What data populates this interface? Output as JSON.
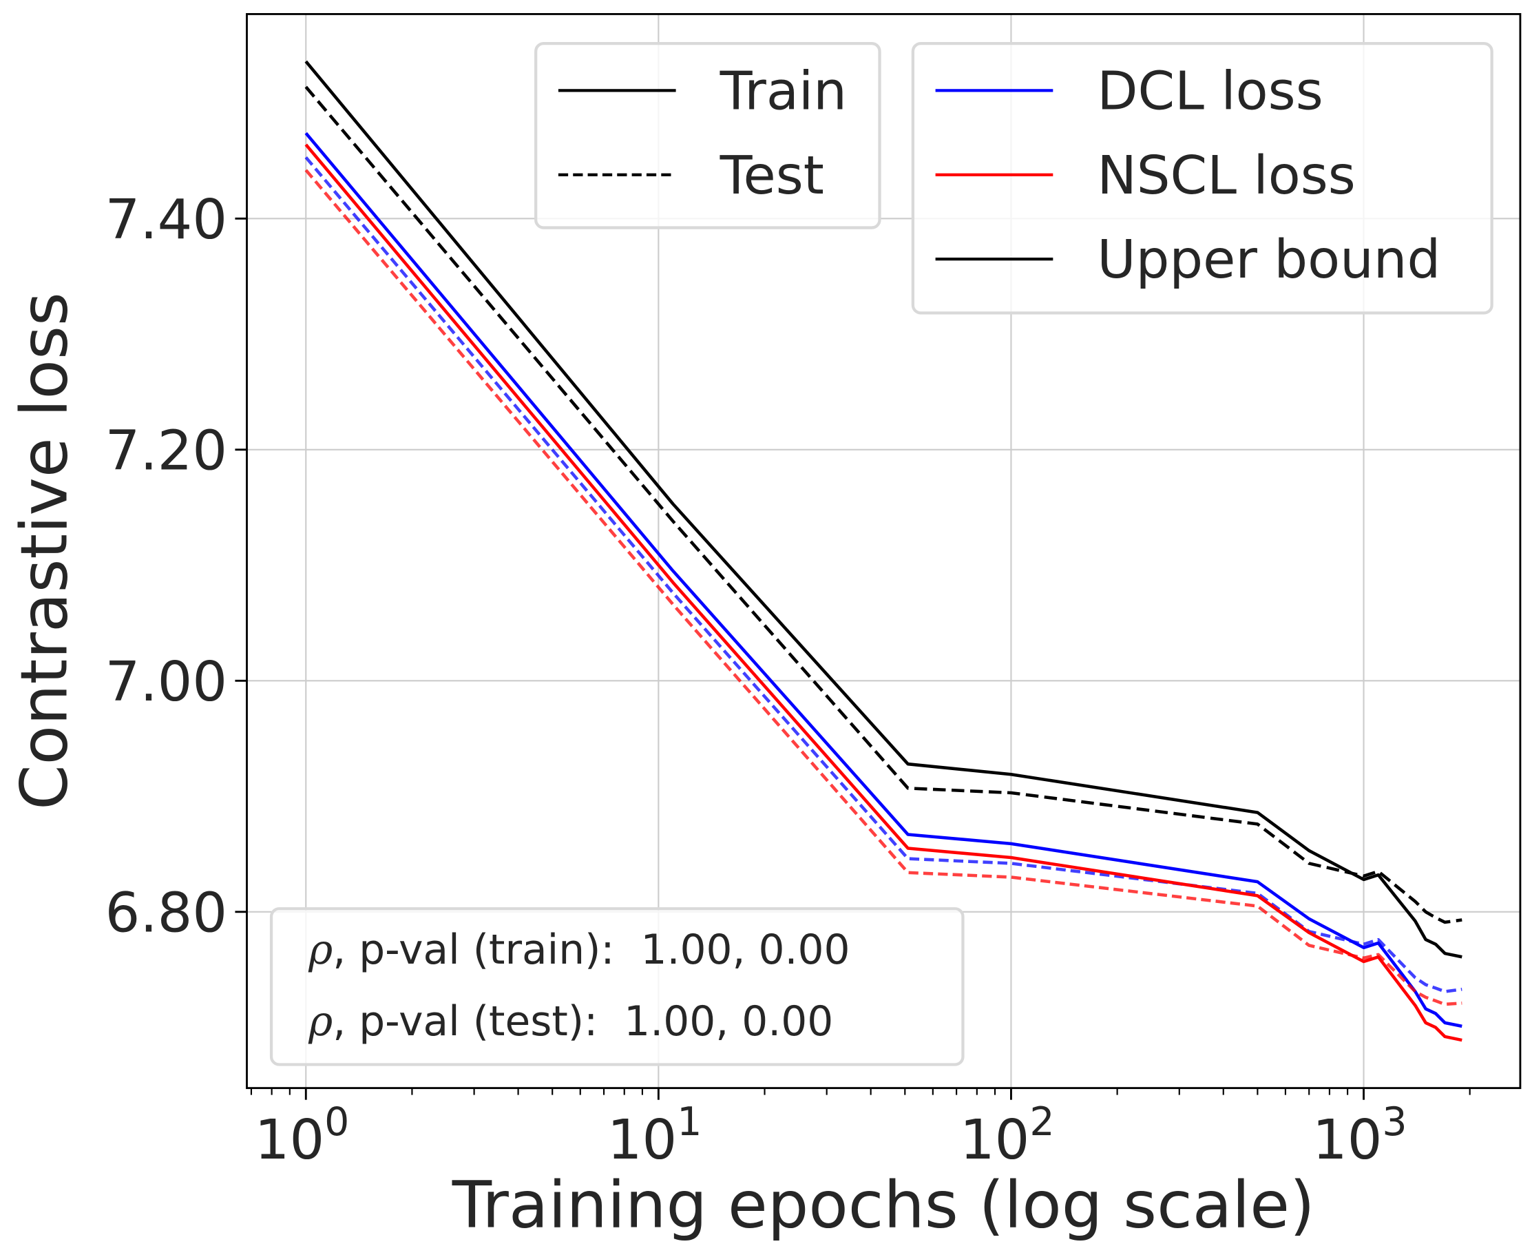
{
  "chart_data": {
    "type": "line",
    "title": "",
    "xlabel": "Training epochs (log scale)",
    "ylabel": "Contrastive loss",
    "xscale": "log",
    "xlim": [
      0.68,
      2780
    ],
    "ylim": [
      6.6475,
      7.577
    ],
    "grid": true,
    "x_ticks": [
      {
        "value": 1,
        "base": "10",
        "exp": "0"
      },
      {
        "value": 10,
        "base": "10",
        "exp": "1"
      },
      {
        "value": 100,
        "base": "10",
        "exp": "2"
      },
      {
        "value": 1000,
        "base": "10",
        "exp": "3"
      }
    ],
    "y_ticks": [
      {
        "value": 7.4,
        "label": "7.40"
      },
      {
        "value": 7.2,
        "label": "7.20"
      },
      {
        "value": 7.0,
        "label": "7.00"
      },
      {
        "value": 6.8,
        "label": "6.80"
      }
    ],
    "x": [
      1,
      11,
      51,
      100,
      500,
      700,
      1000,
      1100,
      1400,
      1500,
      1600,
      1700,
      1900
    ],
    "series": [
      {
        "name": "Upper bound (train)",
        "color": "#000000",
        "dash": false,
        "opacity": 1,
        "values": [
          7.536,
          7.153,
          6.928,
          6.919,
          6.886,
          6.853,
          6.828,
          6.832,
          6.792,
          6.776,
          6.772,
          6.764,
          6.761
        ]
      },
      {
        "name": "Upper bound (test)",
        "color": "#000000",
        "dash": true,
        "opacity": 1,
        "values": [
          7.514,
          7.138,
          6.907,
          6.903,
          6.876,
          6.842,
          6.831,
          6.835,
          6.809,
          6.8,
          6.795,
          6.791,
          6.793
        ]
      },
      {
        "name": "DCL loss (train)",
        "color": "#0000ff",
        "dash": false,
        "opacity": 1,
        "values": [
          7.474,
          7.095,
          6.867,
          6.859,
          6.826,
          6.794,
          6.769,
          6.773,
          6.731,
          6.716,
          6.712,
          6.704,
          6.701
        ]
      },
      {
        "name": "DCL loss (test)",
        "color": "#0000ff",
        "dash": true,
        "opacity": 0.75,
        "values": [
          7.453,
          7.076,
          6.846,
          6.842,
          6.816,
          6.783,
          6.772,
          6.776,
          6.743,
          6.737,
          6.734,
          6.731,
          6.733
        ]
      },
      {
        "name": "NSCL loss (train)",
        "color": "#ff0000",
        "dash": false,
        "opacity": 1,
        "values": [
          7.464,
          7.085,
          6.855,
          6.847,
          6.814,
          6.782,
          6.757,
          6.761,
          6.719,
          6.704,
          6.7,
          6.692,
          6.689
        ]
      },
      {
        "name": "NSCL loss (test)",
        "color": "#ff0000",
        "dash": true,
        "opacity": 0.75,
        "values": [
          7.442,
          7.066,
          6.834,
          6.83,
          6.805,
          6.771,
          6.76,
          6.763,
          6.731,
          6.726,
          6.723,
          6.72,
          6.721
        ]
      }
    ],
    "legend_style": {
      "placement": "top-center",
      "entries": [
        {
          "label": "Train",
          "color": "#000000",
          "dash": false
        },
        {
          "label": "Test",
          "color": "#000000",
          "dash": true
        }
      ]
    },
    "legend_method": {
      "placement": "top-right",
      "entries": [
        {
          "label": "DCL loss",
          "color": "#0000ff",
          "dash": false
        },
        {
          "label": "NSCL loss",
          "color": "#ff0000",
          "dash": false
        },
        {
          "label": "Upper bound",
          "color": "#000000",
          "dash": false
        }
      ]
    },
    "annotation": {
      "placement": "bottom-left",
      "lines": [
        {
          "symbol": "ρ",
          "text": ", p-val (train):  1.00, 0.00"
        },
        {
          "symbol": "ρ",
          "text": ", p-val (test):  1.00, 0.00"
        }
      ]
    }
  }
}
